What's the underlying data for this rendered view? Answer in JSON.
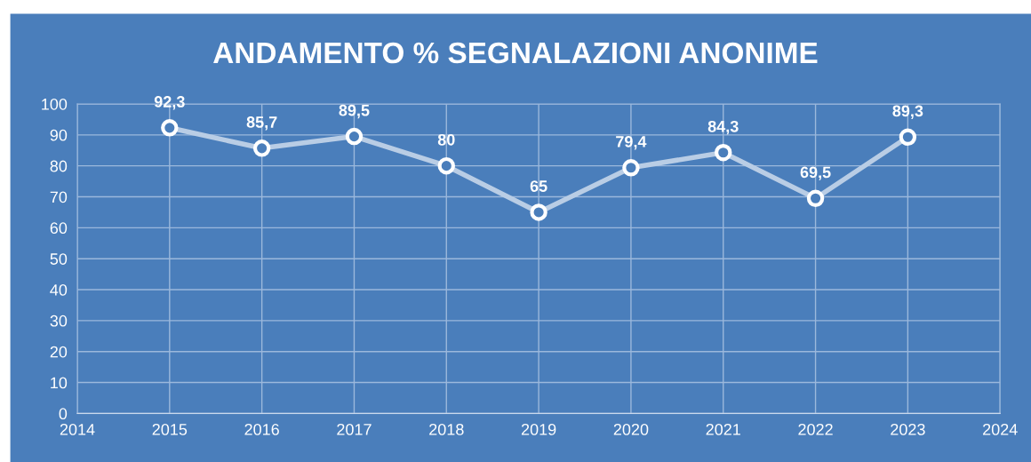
{
  "chart_data": {
    "type": "line",
    "title": "ANDAMENTO % SEGNALAZIONI ANONIME",
    "x": [
      2015,
      2016,
      2017,
      2018,
      2019,
      2020,
      2021,
      2022,
      2023
    ],
    "series": [
      {
        "color": "#b9cde5",
        "values": [
          92.3,
          85.7,
          89.5,
          80,
          65,
          79.4,
          84.3,
          69.5,
          89.3
        ],
        "value_labels": [
          "92,3",
          "85,7",
          "89,5",
          "80",
          "65",
          "79,4",
          "84,3",
          "69,5",
          "89,3"
        ]
      }
    ],
    "xlim": [
      2014,
      2024
    ],
    "xticks": [
      2014,
      2015,
      2016,
      2017,
      2018,
      2019,
      2020,
      2021,
      2022,
      2023,
      2024
    ],
    "ylim": [
      0,
      100
    ],
    "yticks": [
      0,
      10,
      20,
      30,
      40,
      50,
      60,
      70,
      80,
      90,
      100
    ],
    "grid": true,
    "marker": "circle",
    "line_style": "solid",
    "legend": false
  }
}
